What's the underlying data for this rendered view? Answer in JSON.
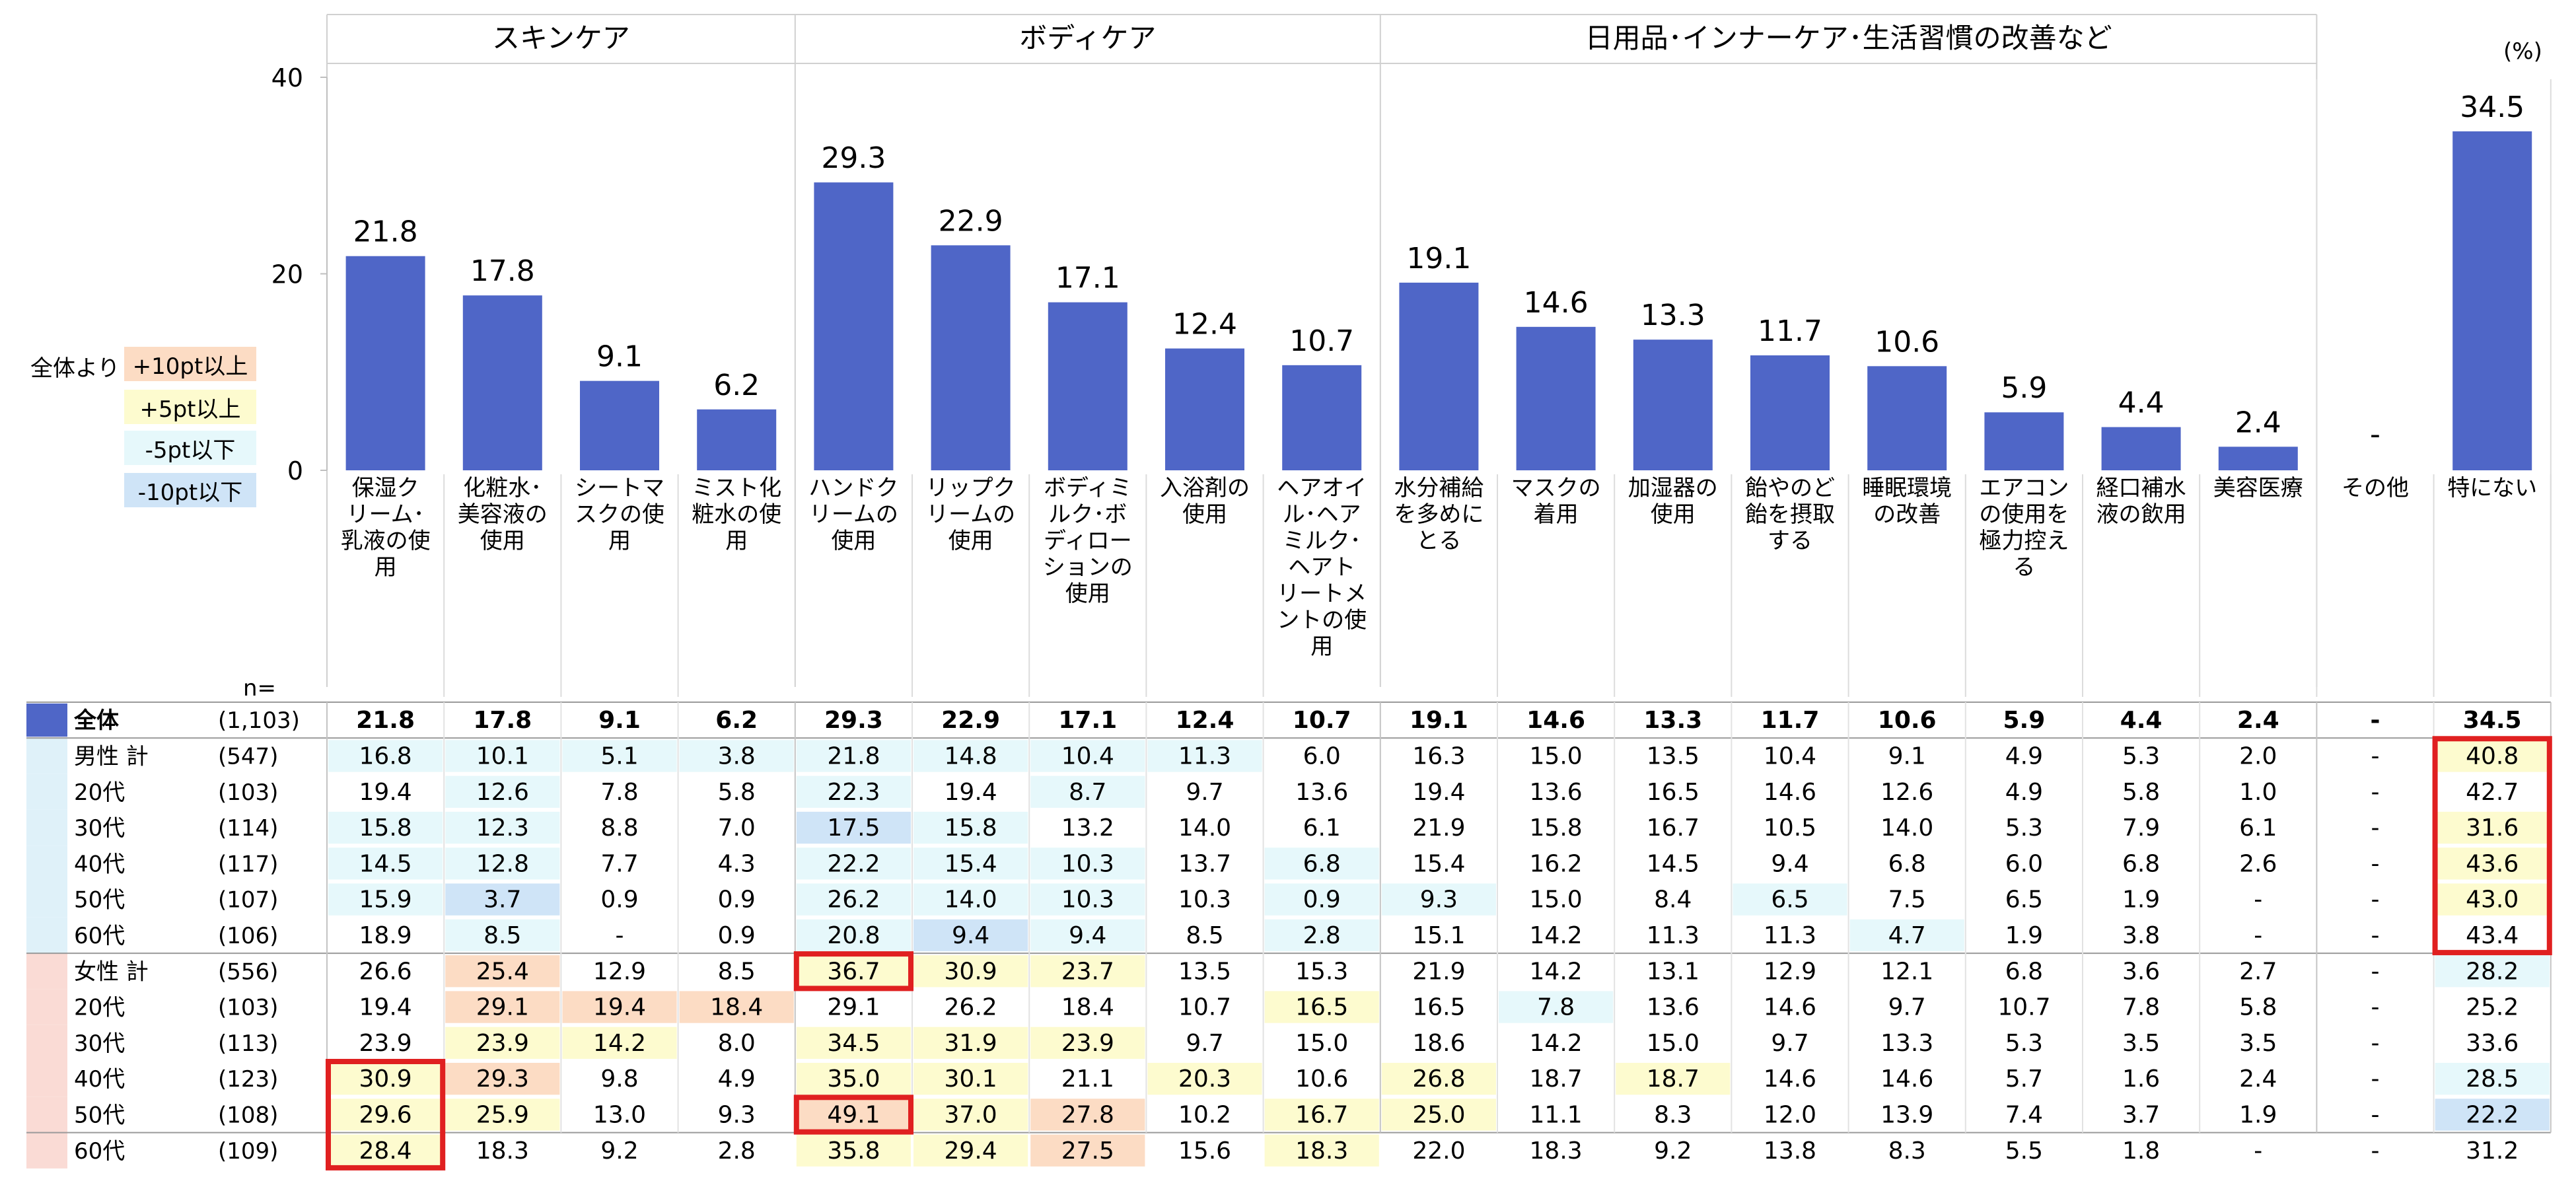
{
  "unit_label": "(%)",
  "n_label": "n=",
  "groups": [
    {
      "label": "スキンケア",
      "start": 0,
      "end": 3
    },
    {
      "label": "ボディケア",
      "start": 4,
      "end": 8
    },
    {
      "label": "日用品･インナーケア･生活習慣の改善など",
      "start": 9,
      "end": 16
    }
  ],
  "legend": {
    "prefix": "全体より",
    "items": [
      {
        "label": "+10pt以上",
        "color": "#fcdcc4"
      },
      {
        "label": "+5pt以上",
        "color": "#fdfbcf"
      },
      {
        "label": "-5pt以下",
        "color": "#e6f8fb"
      },
      {
        "label": "-10pt以下",
        "color": "#cfe4f7"
      }
    ]
  },
  "colors": {
    "bar": "#4f66c7",
    "male_band": "#dff1f9",
    "female_band": "#fadbd5",
    "highlight_border": "#e02020"
  },
  "chart_data": {
    "type": "bar",
    "ylim": [
      0,
      40
    ],
    "yticks": [
      0,
      20,
      40
    ],
    "categories": [
      [
        "保湿ク",
        "リーム･",
        "乳液の使",
        "用"
      ],
      [
        "化粧水･",
        "美容液の",
        "使用"
      ],
      [
        "シートマ",
        "スクの使",
        "用"
      ],
      [
        "ミスト化",
        "粧水の使",
        "用"
      ],
      [
        "ハンドク",
        "リームの",
        "使用"
      ],
      [
        "リップク",
        "リームの",
        "使用"
      ],
      [
        "ボディミ",
        "ルク･ボ",
        "ディロー",
        "ションの",
        "使用"
      ],
      [
        "入浴剤の",
        "使用"
      ],
      [
        "ヘアオイ",
        "ル･ヘア",
        "ミルク･",
        "ヘアト",
        "リートメ",
        "ントの使",
        "用"
      ],
      [
        "水分補給",
        "を多めに",
        "とる"
      ],
      [
        "マスクの",
        "着用"
      ],
      [
        "加湿器の",
        "使用"
      ],
      [
        "飴やのど",
        "飴を摂取",
        "する"
      ],
      [
        "睡眠環境",
        "の改善"
      ],
      [
        "エアコン",
        "の使用を",
        "極力控え",
        "る"
      ],
      [
        "経口補水",
        "液の飲用"
      ],
      [
        "美容医療"
      ],
      [
        "その他"
      ],
      [
        "特にない"
      ]
    ],
    "values": [
      21.8,
      17.8,
      9.1,
      6.2,
      29.3,
      22.9,
      17.1,
      12.4,
      10.7,
      19.1,
      14.6,
      13.3,
      11.7,
      10.6,
      5.9,
      4.4,
      2.4,
      null,
      34.5
    ],
    "value_labels": [
      "21.8",
      "17.8",
      "9.1",
      "6.2",
      "29.3",
      "22.9",
      "17.1",
      "12.4",
      "10.7",
      "19.1",
      "14.6",
      "13.3",
      "11.7",
      "10.6",
      "5.9",
      "4.4",
      "2.4",
      "-",
      "34.5"
    ]
  },
  "table": {
    "rows": [
      {
        "label": "全体",
        "n": "(1,103)",
        "type": "total",
        "values": [
          "21.8",
          "17.8",
          "9.1",
          "6.2",
          "29.3",
          "22.9",
          "17.1",
          "12.4",
          "10.7",
          "19.1",
          "14.6",
          "13.3",
          "11.7",
          "10.6",
          "5.9",
          "4.4",
          "2.4",
          "-",
          "34.5"
        ],
        "shade": "0000000000000000000"
      },
      {
        "label": "男性 計",
        "n": "(547)",
        "type": "male",
        "values": [
          "16.8",
          "10.1",
          "5.1",
          "3.8",
          "21.8",
          "14.8",
          "10.4",
          "11.3",
          "6.0",
          "16.3",
          "15.0",
          "13.5",
          "10.4",
          "9.1",
          "4.9",
          "5.3",
          "2.0",
          "-",
          "40.8"
        ],
        "shade": "dddddddd0000000000y"
      },
      {
        "label": "20代",
        "n": "(103)",
        "type": "male",
        "values": [
          "19.4",
          "12.6",
          "7.8",
          "5.8",
          "22.3",
          "19.4",
          "8.7",
          "9.7",
          "13.6",
          "19.4",
          "13.6",
          "16.5",
          "14.6",
          "12.6",
          "4.9",
          "5.8",
          "1.0",
          "-",
          "42.7"
        ],
        "shade": "0d00d0d000000000000"
      },
      {
        "label": "30代",
        "n": "(114)",
        "type": "male",
        "values": [
          "15.8",
          "12.3",
          "8.8",
          "7.0",
          "17.5",
          "15.8",
          "13.2",
          "14.0",
          "6.1",
          "21.9",
          "15.8",
          "16.7",
          "10.5",
          "14.0",
          "5.3",
          "7.9",
          "6.1",
          "-",
          "31.6"
        ],
        "shade": "dd00Dd000000000000y"
      },
      {
        "label": "40代",
        "n": "(117)",
        "type": "male",
        "values": [
          "14.5",
          "12.8",
          "7.7",
          "4.3",
          "22.2",
          "15.4",
          "10.3",
          "13.7",
          "6.8",
          "15.4",
          "16.2",
          "14.5",
          "9.4",
          "6.8",
          "6.0",
          "6.8",
          "2.6",
          "-",
          "43.6"
        ],
        "shade": "dd00ddd0d000000000y"
      },
      {
        "label": "50代",
        "n": "(107)",
        "type": "male",
        "values": [
          "15.9",
          "3.7",
          "0.9",
          "0.9",
          "26.2",
          "14.0",
          "10.3",
          "10.3",
          "0.9",
          "9.3",
          "15.0",
          "8.4",
          "6.5",
          "7.5",
          "6.5",
          "1.9",
          "-",
          "-",
          "43.0"
        ],
        "shade": "dD00ddd0dd00d00000y"
      },
      {
        "label": "60代",
        "n": "(106)",
        "type": "male",
        "values": [
          "18.9",
          "8.5",
          "-",
          "0.9",
          "20.8",
          "9.4",
          "9.4",
          "8.5",
          "2.8",
          "15.1",
          "14.2",
          "11.3",
          "11.3",
          "4.7",
          "1.9",
          "3.8",
          "-",
          "-",
          "43.4"
        ],
        "shade": "0d00dDd0d0000d00000y"
      },
      {
        "label": "女性 計",
        "n": "(556)",
        "type": "female",
        "values": [
          "26.6",
          "25.4",
          "12.9",
          "8.5",
          "36.7",
          "30.9",
          "23.7",
          "13.5",
          "15.3",
          "21.9",
          "14.2",
          "13.1",
          "12.9",
          "12.1",
          "6.8",
          "3.6",
          "2.7",
          "-",
          "28.2"
        ],
        "shade": "0O00yyy00000000000d"
      },
      {
        "label": "20代",
        "n": "(103)",
        "type": "female",
        "values": [
          "19.4",
          "29.1",
          "19.4",
          "18.4",
          "29.1",
          "26.2",
          "18.4",
          "10.7",
          "16.5",
          "16.5",
          "7.8",
          "13.6",
          "14.6",
          "9.7",
          "10.7",
          "7.8",
          "5.8",
          "-",
          "25.2"
        ],
        "shade": "0OOO0000y0d00000000d"
      },
      {
        "label": "30代",
        "n": "(113)",
        "type": "female",
        "values": [
          "23.9",
          "23.9",
          "14.2",
          "8.0",
          "34.5",
          "31.9",
          "23.9",
          "9.7",
          "15.0",
          "18.6",
          "14.2",
          "15.0",
          "9.7",
          "13.3",
          "5.3",
          "3.5",
          "3.5",
          "-",
          "33.6"
        ],
        "shade": "0yy0yyy000000000000"
      },
      {
        "label": "40代",
        "n": "(123)",
        "type": "female",
        "values": [
          "30.9",
          "29.3",
          "9.8",
          "4.9",
          "35.0",
          "30.1",
          "21.1",
          "20.3",
          "10.6",
          "26.8",
          "18.7",
          "18.7",
          "14.6",
          "14.6",
          "5.7",
          "1.6",
          "2.4",
          "-",
          "28.5"
        ],
        "shade": "yO00yy0y0y0y000000d"
      },
      {
        "label": "50代",
        "n": "(108)",
        "type": "female",
        "values": [
          "29.6",
          "25.9",
          "13.0",
          "9.3",
          "49.1",
          "37.0",
          "27.8",
          "10.2",
          "16.7",
          "25.0",
          "11.1",
          "8.3",
          "12.0",
          "13.9",
          "7.4",
          "3.7",
          "1.9",
          "-",
          "22.2"
        ],
        "shade": "yy00OyO0yy00000000D"
      },
      {
        "label": "60代",
        "n": "(109)",
        "type": "female",
        "values": [
          "28.4",
          "18.3",
          "9.2",
          "2.8",
          "35.8",
          "29.4",
          "27.5",
          "15.6",
          "18.3",
          "22.0",
          "18.3",
          "9.2",
          "13.8",
          "8.3",
          "5.5",
          "1.8",
          "-",
          "-",
          "31.2"
        ],
        "shade": "y000yyO0y0000000000"
      }
    ],
    "highlights": [
      {
        "row_start": 1,
        "row_end": 6,
        "col": 18
      },
      {
        "row_start": 7,
        "row_end": 7,
        "col": 4
      },
      {
        "row_start": 11,
        "row_end": 11,
        "col": 4
      },
      {
        "row_start": 10,
        "row_end": 12,
        "col": 0
      }
    ]
  }
}
